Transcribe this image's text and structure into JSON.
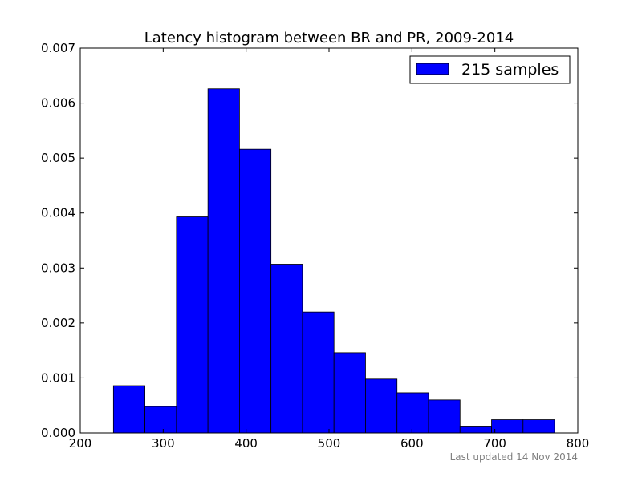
{
  "chart_data": {
    "type": "bar",
    "title": "Latency histogram between BR and PR, 2009-2014",
    "xlabel": "",
    "ylabel": "",
    "xlim": [
      200,
      800
    ],
    "ylim": [
      0,
      0.007
    ],
    "xticks": [
      "200",
      "300",
      "400",
      "500",
      "600",
      "700",
      "800"
    ],
    "yticks": [
      "0.000",
      "0.001",
      "0.002",
      "0.003",
      "0.004",
      "0.005",
      "0.006",
      "0.007"
    ],
    "bin_edges": [
      240,
      278,
      316,
      354,
      392,
      430,
      468,
      506,
      544,
      582,
      620,
      658,
      696,
      734,
      772
    ],
    "series": [
      {
        "name": "215 samples",
        "values": [
          0.00086,
          0.00048,
          0.00393,
          0.00626,
          0.00516,
          0.00307,
          0.0022,
          0.00146,
          0.00098,
          0.00073,
          0.0006,
          0.00011,
          0.00024,
          0.00024
        ]
      }
    ],
    "grid": false,
    "legend_position": "top-right",
    "colors": {
      "bar": "#0000ff",
      "edge": "#000000"
    }
  },
  "footnote": "Last updated 14 Nov 2014"
}
